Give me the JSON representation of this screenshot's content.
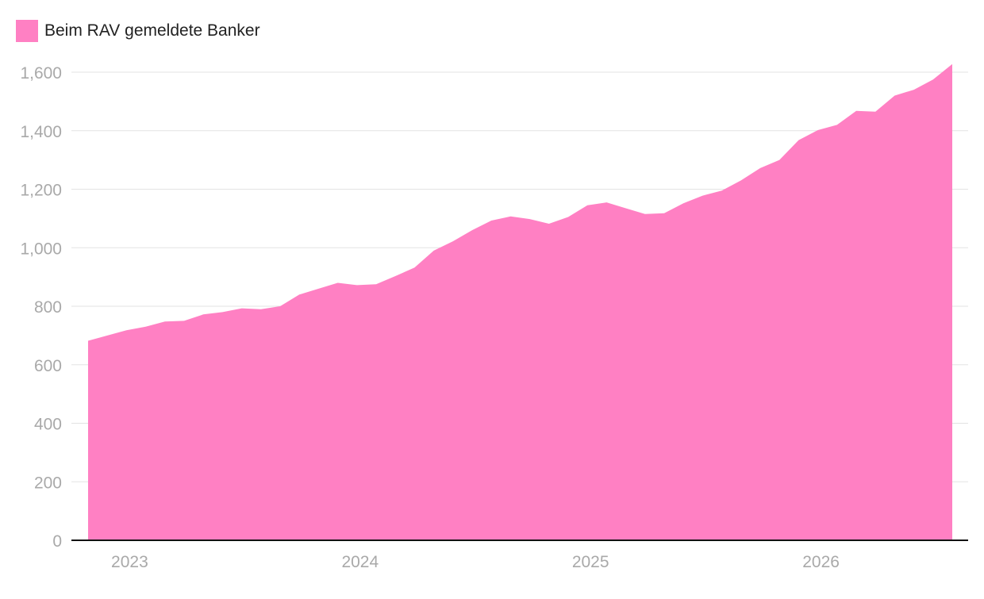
{
  "chart_data": {
    "type": "area",
    "series": [
      {
        "name": "Beim RAV gemeldete Banker",
        "color": "#ff80c3",
        "x": [
          "2022-11",
          "2022-12",
          "2023-01",
          "2023-02",
          "2023-03",
          "2023-04",
          "2023-05",
          "2023-06",
          "2023-07",
          "2023-08",
          "2023-09",
          "2023-10",
          "2023-11",
          "2023-12",
          "2024-01",
          "2024-02",
          "2024-03",
          "2024-04",
          "2024-05",
          "2024-06",
          "2024-07",
          "2024-08",
          "2024-09",
          "2024-10",
          "2024-11",
          "2024-12",
          "2025-01",
          "2025-02",
          "2025-03",
          "2025-04",
          "2025-05",
          "2025-06",
          "2025-07",
          "2025-08",
          "2025-09",
          "2025-10",
          "2025-11",
          "2025-12",
          "2026-01",
          "2026-02",
          "2026-03",
          "2026-04",
          "2026-05",
          "2026-06",
          "2026-07",
          "2026-08"
        ],
        "values": [
          682,
          700,
          718,
          730,
          748,
          750,
          772,
          780,
          793,
          790,
          800,
          840,
          860,
          880,
          872,
          875,
          903,
          932,
          990,
          1022,
          1060,
          1093,
          1107,
          1098,
          1082,
          1105,
          1145,
          1155,
          1135,
          1115,
          1118,
          1152,
          1178,
          1195,
          1230,
          1272,
          1300,
          1368,
          1402,
          1420,
          1468,
          1465,
          1520,
          1540,
          1575,
          1628
        ]
      }
    ],
    "x_ticks": [
      "2023",
      "2024",
      "2025",
      "2026"
    ],
    "y_ticks": [
      "0",
      "200",
      "400",
      "600",
      "800",
      "1,000",
      "1,200",
      "1,400",
      "1,600"
    ],
    "ylim": [
      0,
      1600
    ],
    "grid": true,
    "legend_position": "top-left",
    "title": "",
    "xlabel": "",
    "ylabel": ""
  }
}
